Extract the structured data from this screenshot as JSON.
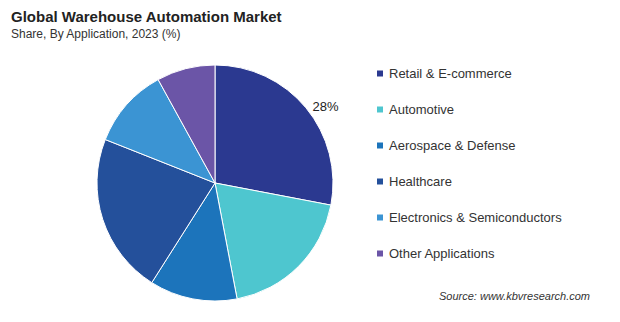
{
  "chart_data": {
    "type": "pie",
    "title": "Global Warehouse Automation Market",
    "subtitle": "Share, By Application, 2023 (%)",
    "source": "Source: www.kbvresearch.com",
    "categories": [
      "Retail & E-commerce",
      "Automotive",
      "Aerospace & Defense",
      "Healthcare",
      "Electronics & Semiconductors",
      "Other Applications"
    ],
    "values": [
      28,
      19,
      12,
      22,
      11,
      8
    ],
    "value_labels": [
      "28%",
      null,
      null,
      null,
      null,
      null
    ],
    "colors": [
      "#2b3990",
      "#4ec6cf",
      "#1c74bb",
      "#24509b",
      "#3b94d3",
      "#6b55a7"
    ],
    "legend": "right",
    "data_labels": true
  }
}
